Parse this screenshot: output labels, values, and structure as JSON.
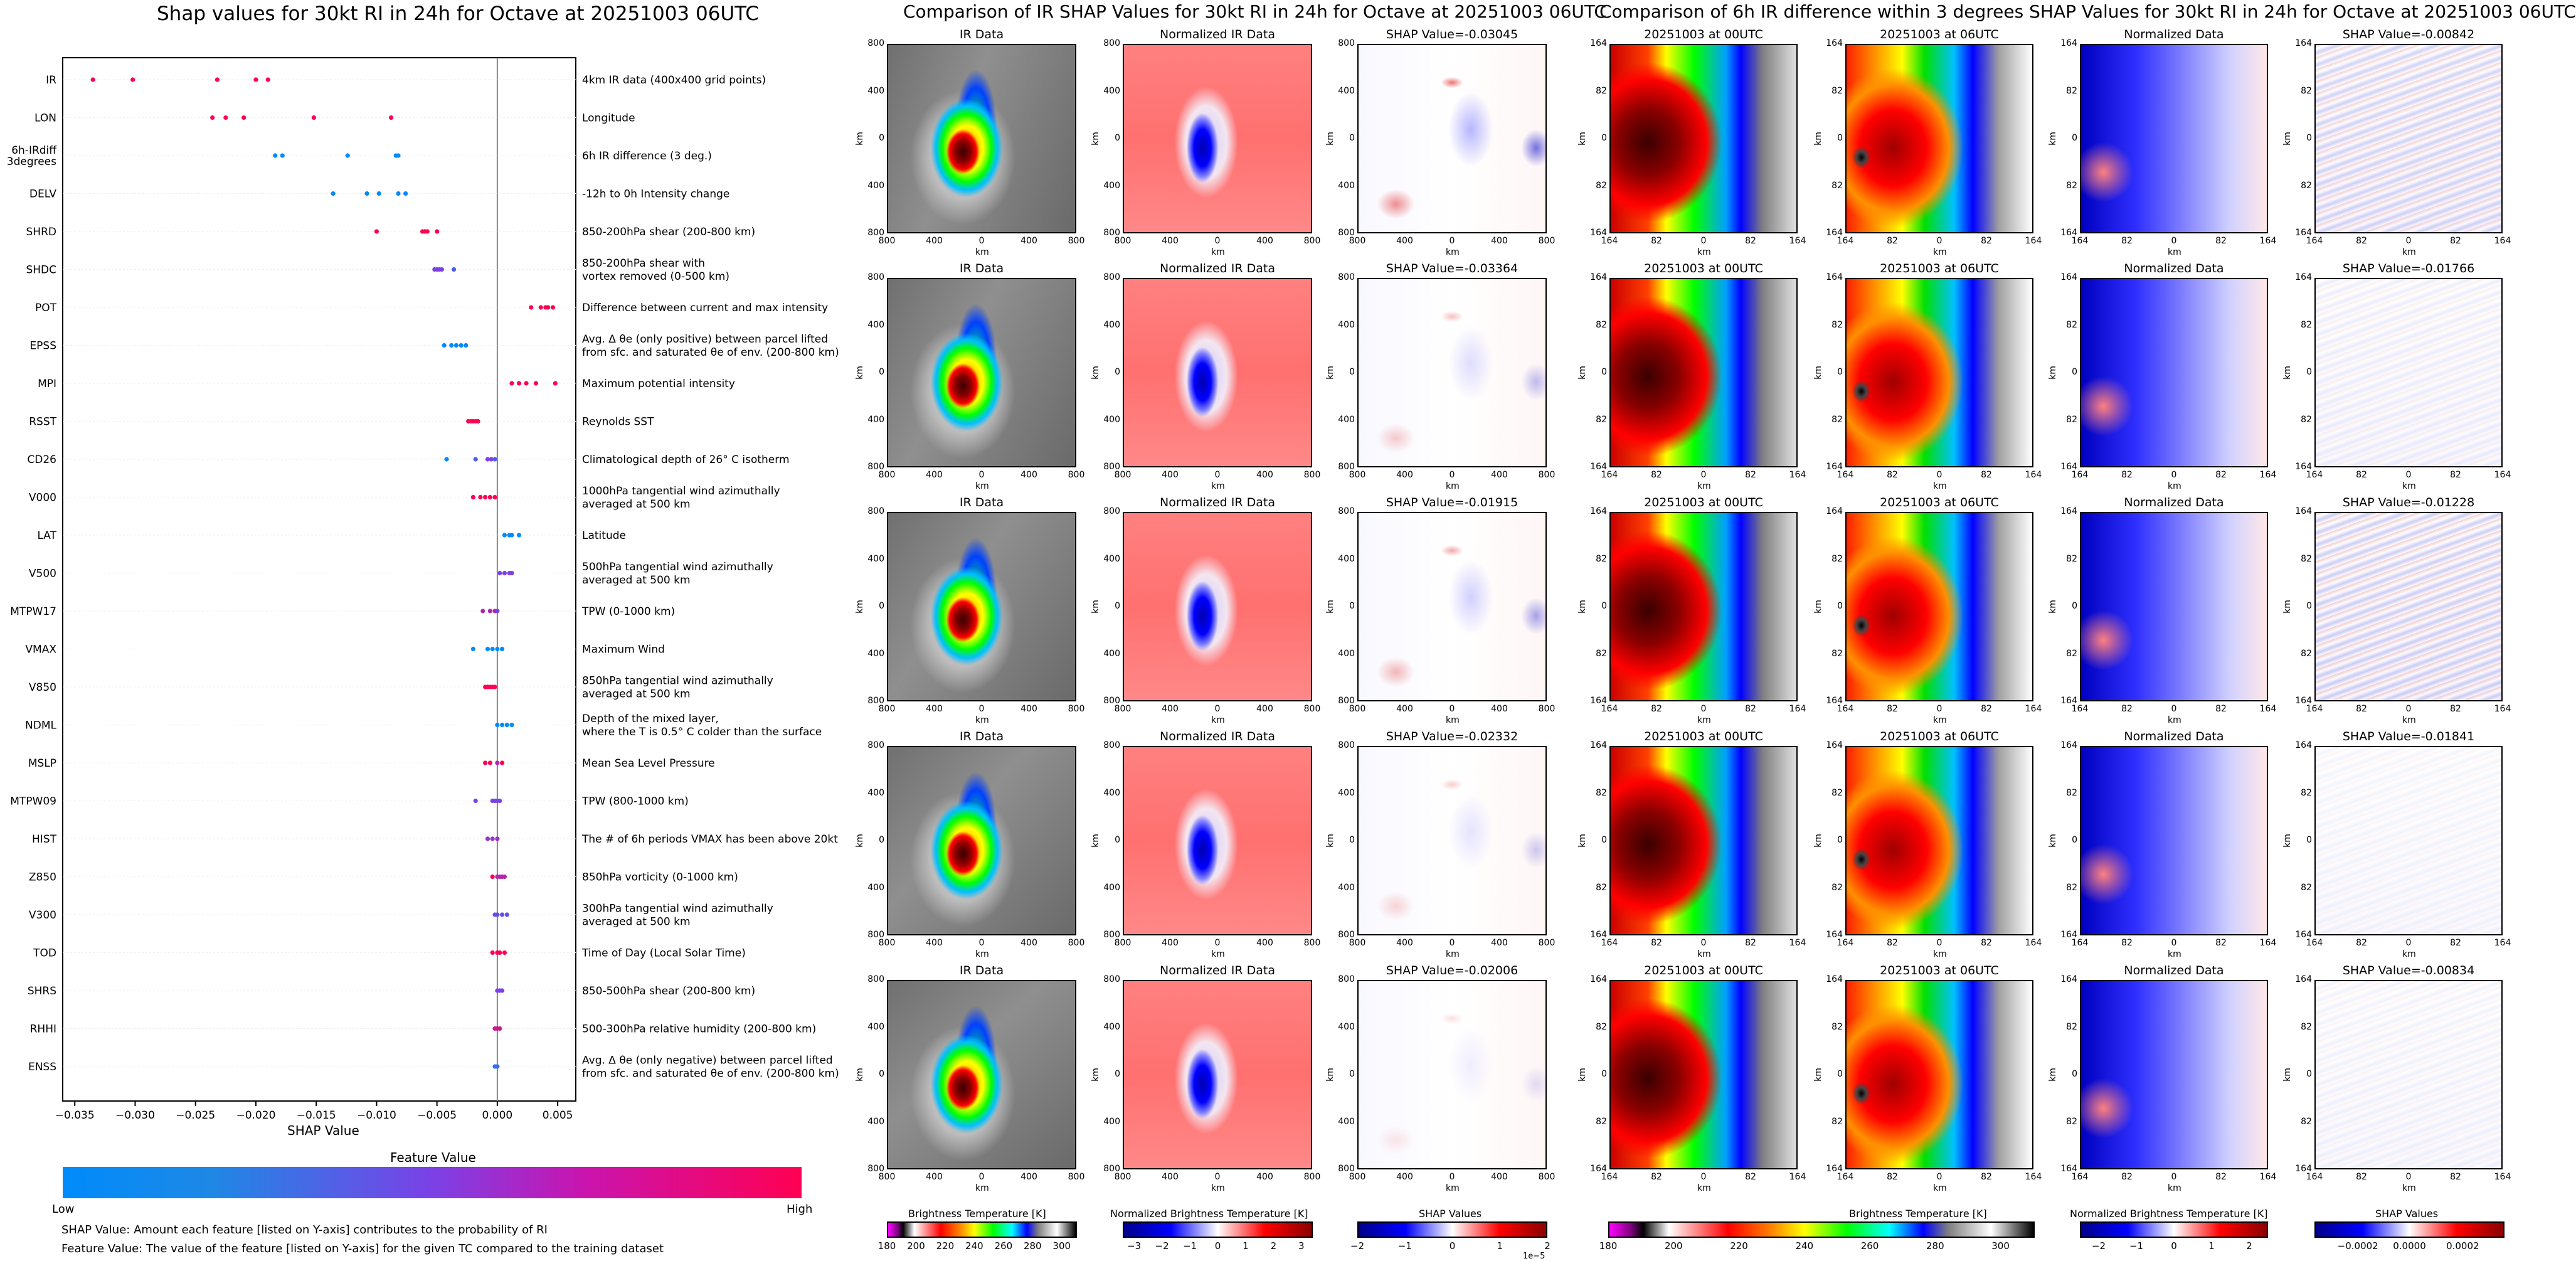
{
  "shap_section": {
    "title": "Shap values for 30kt RI in 24h for Octave at 20251003 06UTC",
    "xlabel": "SHAP Value",
    "colorbar_title": "Feature Value",
    "colorbar_low": "Low",
    "colorbar_high": "High",
    "footnote_1": "SHAP Value: Amount each feature [listed on Y-axis] contributes to the probability of RI",
    "footnote_2": "Feature Value: The value of the feature [listed on Y-axis] for the given TC compared to the training dataset"
  },
  "ir_section": {
    "title": "Comparison of IR SHAP Values for 30kt RI in 24h for Octave at 20251003 06UTC",
    "col_titles": [
      "IR Data",
      "Normalized IR Data"
    ],
    "shap_titles": [
      "SHAP Value=-0.03045",
      "SHAP Value=-0.03364",
      "SHAP Value=-0.01915",
      "SHAP Value=-0.02332",
      "SHAP Value=-0.02006"
    ],
    "axis_unit": "km",
    "ticks": [
      "800",
      "400",
      "0",
      "400",
      "800"
    ],
    "cbar_labels": [
      "Brightness Temperature [K]",
      "Normalized Brightness Temperature [K]",
      "SHAP Values"
    ],
    "cbar1_ticks": [
      "180",
      "200",
      "220",
      "240",
      "260",
      "280",
      "300"
    ],
    "cbar2_ticks": [
      "−3",
      "−2",
      "−1",
      "0",
      "1",
      "2",
      "3"
    ],
    "cbar3_ticks": [
      "−2",
      "−1",
      "0",
      "1",
      "2"
    ],
    "cbar3_exp": "1e−5"
  },
  "diff_section": {
    "title": "Comparison of 6h IR difference within 3 degrees SHAP Values for 30kt RI in 24h for Octave at 20251003 06UTC",
    "col_titles": [
      "20251003 at 00UTC",
      "20251003 at 06UTC",
      "Normalized Data"
    ],
    "shap_titles": [
      "SHAP Value=-0.00842",
      "SHAP Value=-0.01766",
      "SHAP Value=-0.01228",
      "SHAP Value=-0.01841",
      "SHAP Value=-0.00834"
    ],
    "axis_unit": "km",
    "ticks": [
      "164",
      "82",
      "0",
      "82",
      "164"
    ],
    "cbar_labels": [
      "Brightness Temperature [K]",
      "Normalized Brightness Temperature [K]",
      "SHAP Values"
    ],
    "cbar1_ticks": [
      "180",
      "200",
      "220",
      "240",
      "260",
      "280",
      "300"
    ],
    "cbar2_ticks": [
      "−2",
      "−1",
      "0",
      "1",
      "2"
    ],
    "cbar3_ticks": [
      "−0.0002",
      "0.0000",
      "0.0002"
    ]
  },
  "colors": {
    "low": "#1E88E5",
    "high": "#FF0D57",
    "shap_positive": "#c0001a",
    "shap_negative": "#0000c0"
  },
  "chart_data": {
    "type": "scatter",
    "title": "Shap values for 30kt RI in 24h for Octave at 20251003 06UTC",
    "xlabel": "SHAP Value",
    "xlim": [
      -0.036,
      0.0065
    ],
    "xticks": [
      -0.035,
      -0.03,
      -0.025,
      -0.02,
      -0.015,
      -0.01,
      -0.005,
      0.0,
      0.005
    ],
    "xtick_labels": [
      "−0.035",
      "−0.030",
      "−0.025",
      "−0.020",
      "−0.015",
      "−0.010",
      "−0.005",
      "0.000",
      "0.005"
    ],
    "color_scale": "feature value (Low → High)",
    "series": [
      {
        "feature": "IR",
        "desc": "4km IR data (400x400 grid points)",
        "points": [
          [
            -0.0335,
            1.0
          ],
          [
            -0.0302,
            1.0
          ],
          [
            -0.0232,
            1.0
          ],
          [
            -0.02,
            1.0
          ],
          [
            -0.019,
            1.0
          ]
        ]
      },
      {
        "feature": "LON",
        "desc": "Longitude",
        "points": [
          [
            -0.0236,
            1.0
          ],
          [
            -0.0225,
            1.0
          ],
          [
            -0.021,
            1.0
          ],
          [
            -0.0152,
            1.0
          ],
          [
            -0.0088,
            1.0
          ]
        ]
      },
      {
        "feature": "6h-IRdiff\n3degrees",
        "desc": "6h IR difference (3 deg.)",
        "points": [
          [
            -0.0184,
            0.0
          ],
          [
            -0.0178,
            0.0
          ],
          [
            -0.0124,
            0.0
          ],
          [
            -0.0084,
            0.0
          ],
          [
            -0.0082,
            0.0
          ]
        ]
      },
      {
        "feature": "DELV",
        "desc": "-12h to 0h Intensity change",
        "points": [
          [
            -0.0136,
            0.0
          ],
          [
            -0.0108,
            0.0
          ],
          [
            -0.0098,
            0.0
          ],
          [
            -0.0082,
            0.0
          ],
          [
            -0.0076,
            0.0
          ]
        ]
      },
      {
        "feature": "SHRD",
        "desc": "850-200hPa shear (200-800 km)",
        "points": [
          [
            -0.01,
            1.0
          ],
          [
            -0.0062,
            1.0
          ],
          [
            -0.006,
            1.0
          ],
          [
            -0.0058,
            1.0
          ],
          [
            -0.005,
            1.0
          ]
        ]
      },
      {
        "feature": "SHDC",
        "desc": "850-200hPa shear with\nvortex removed (0-500 km)",
        "points": [
          [
            -0.0052,
            0.5
          ],
          [
            -0.005,
            0.5
          ],
          [
            -0.0048,
            0.5
          ],
          [
            -0.0046,
            0.5
          ],
          [
            -0.0036,
            0.3
          ]
        ]
      },
      {
        "feature": "POT",
        "desc": "Difference between current and max intensity",
        "points": [
          [
            0.0028,
            1.0
          ],
          [
            0.0036,
            1.0
          ],
          [
            0.004,
            1.0
          ],
          [
            0.0042,
            1.0
          ],
          [
            0.0046,
            1.0
          ]
        ]
      },
      {
        "feature": "EPSS",
        "desc": "Avg. Δ θe (only positive) between parcel lifted\nfrom sfc. and saturated θe of env. (200-800 km)",
        "points": [
          [
            -0.0044,
            0.0
          ],
          [
            -0.0038,
            0.0
          ],
          [
            -0.0034,
            0.0
          ],
          [
            -0.003,
            0.0
          ],
          [
            -0.0026,
            0.0
          ]
        ]
      },
      {
        "feature": "MPI",
        "desc": "Maximum potential intensity",
        "points": [
          [
            0.0012,
            1.0
          ],
          [
            0.0018,
            1.0
          ],
          [
            0.0024,
            1.0
          ],
          [
            0.0032,
            1.0
          ],
          [
            0.0048,
            1.0
          ]
        ]
      },
      {
        "feature": "RSST",
        "desc": "Reynolds SST",
        "points": [
          [
            -0.0024,
            1.0
          ],
          [
            -0.0022,
            1.0
          ],
          [
            -0.002,
            1.0
          ],
          [
            -0.0018,
            1.0
          ],
          [
            -0.0016,
            1.0
          ]
        ]
      },
      {
        "feature": "CD26",
        "desc": "Climatological depth of 26° C isotherm",
        "points": [
          [
            -0.0042,
            0.0
          ],
          [
            -0.0018,
            0.3
          ],
          [
            -0.0008,
            0.5
          ],
          [
            -0.0005,
            0.5
          ],
          [
            -0.0002,
            0.3
          ]
        ]
      },
      {
        "feature": "V000",
        "desc": "1000hPa tangential wind azimuthally\naveraged at 500 km",
        "points": [
          [
            -0.002,
            1.0
          ],
          [
            -0.0014,
            1.0
          ],
          [
            -0.001,
            1.0
          ],
          [
            -0.0006,
            1.0
          ],
          [
            -0.0002,
            1.0
          ]
        ]
      },
      {
        "feature": "LAT",
        "desc": "Latitude",
        "points": [
          [
            0.0006,
            0.0
          ],
          [
            0.001,
            0.0
          ],
          [
            0.0012,
            0.0
          ],
          [
            0.0018,
            0.0
          ]
        ]
      },
      {
        "feature": "V500",
        "desc": "500hPa tangential wind azimuthally\naveraged at 500 km",
        "points": [
          [
            0.0002,
            0.5
          ],
          [
            0.0006,
            0.5
          ],
          [
            0.001,
            0.5
          ],
          [
            0.0012,
            0.5
          ]
        ]
      },
      {
        "feature": "MTPW17",
        "desc": "TPW (0-1000 km)",
        "points": [
          [
            -0.0012,
            0.7
          ],
          [
            -0.0006,
            0.7
          ],
          [
            -0.0002,
            0.7
          ],
          [
            0.0,
            0.5
          ]
        ]
      },
      {
        "feature": "VMAX",
        "desc": "Maximum Wind",
        "points": [
          [
            -0.002,
            0.0
          ],
          [
            -0.0008,
            0.0
          ],
          [
            -0.0004,
            0.0
          ],
          [
            0.0,
            0.0
          ],
          [
            0.0004,
            0.0
          ]
        ]
      },
      {
        "feature": "V850",
        "desc": "850hPa tangential wind azimuthally\naveraged at 500 km",
        "points": [
          [
            -0.001,
            1.0
          ],
          [
            -0.0008,
            1.0
          ],
          [
            -0.0006,
            1.0
          ],
          [
            -0.0004,
            1.0
          ],
          [
            -0.0002,
            1.0
          ]
        ]
      },
      {
        "feature": "NDML",
        "desc": "Depth of the mixed layer,\nwhere the T is 0.5° C colder than the surface",
        "points": [
          [
            0.0,
            0.0
          ],
          [
            0.0004,
            0.0
          ],
          [
            0.0008,
            0.0
          ],
          [
            0.0012,
            0.0
          ]
        ]
      },
      {
        "feature": "MSLP",
        "desc": "Mean Sea Level Pressure",
        "points": [
          [
            -0.001,
            1.0
          ],
          [
            -0.0006,
            1.0
          ],
          [
            0.0,
            0.7
          ],
          [
            0.0004,
            1.0
          ]
        ]
      },
      {
        "feature": "MTPW09",
        "desc": "TPW (800-1000 km)",
        "points": [
          [
            -0.0018,
            0.5
          ],
          [
            -0.0004,
            0.5
          ],
          [
            -0.0002,
            0.5
          ],
          [
            0.0,
            0.5
          ],
          [
            0.0002,
            0.5
          ]
        ]
      },
      {
        "feature": "HIST",
        "desc": "The # of 6h periods VMAX has been above 20kt",
        "points": [
          [
            -0.0008,
            0.6
          ],
          [
            -0.0004,
            0.6
          ],
          [
            0.0,
            0.6
          ]
        ]
      },
      {
        "feature": "Z850",
        "desc": "850hPa vorticity (0-1000 km)",
        "points": [
          [
            -0.0004,
            1.0
          ],
          [
            0.0,
            0.7
          ],
          [
            0.0002,
            0.7
          ],
          [
            0.0004,
            0.7
          ],
          [
            0.0006,
            0.7
          ]
        ]
      },
      {
        "feature": "V300",
        "desc": "300hPa tangential wind azimuthally\naveraged at 500 km",
        "points": [
          [
            -0.0002,
            0.4
          ],
          [
            0.0,
            0.4
          ],
          [
            0.0004,
            0.4
          ],
          [
            0.0008,
            0.4
          ]
        ]
      },
      {
        "feature": "TOD",
        "desc": "Time of Day (Local Solar Time)",
        "points": [
          [
            -0.0004,
            1.0
          ],
          [
            0.0,
            1.0
          ],
          [
            0.0002,
            1.0
          ],
          [
            0.0006,
            1.0
          ]
        ]
      },
      {
        "feature": "SHRS",
        "desc": "850-500hPa shear (200-800 km)",
        "points": [
          [
            0.0,
            0.5
          ],
          [
            0.0002,
            0.5
          ],
          [
            0.0004,
            0.5
          ]
        ]
      },
      {
        "feature": "RHHI",
        "desc": "500-300hPa relative humidity (200-800 km)",
        "points": [
          [
            -0.0002,
            0.8
          ],
          [
            0.0,
            0.8
          ],
          [
            0.0002,
            0.8
          ]
        ]
      },
      {
        "feature": "ENSS",
        "desc": "Avg. Δ θe (only negative) between parcel lifted\nfrom sfc. and saturated θe of env. (200-800 km)",
        "points": [
          [
            -0.0002,
            0.2
          ],
          [
            0.0,
            0.2
          ]
        ]
      }
    ]
  }
}
